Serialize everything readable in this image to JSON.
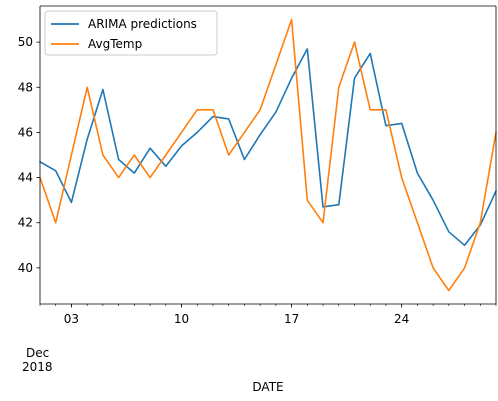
{
  "chart_data": {
    "type": "line",
    "xlabel": "DATE",
    "ylabel": "",
    "month_label": "Dec",
    "year_label": "2018",
    "x": [
      1,
      2,
      3,
      4,
      5,
      6,
      7,
      8,
      9,
      10,
      11,
      12,
      13,
      14,
      15,
      16,
      17,
      18,
      19,
      20,
      21,
      22,
      23,
      24,
      25,
      26,
      27,
      28,
      29,
      30
    ],
    "x_ticks": [
      {
        "value": 3,
        "label": "03"
      },
      {
        "value": 10,
        "label": "10"
      },
      {
        "value": 17,
        "label": "17"
      },
      {
        "value": 24,
        "label": "24"
      }
    ],
    "xlim": [
      1,
      30
    ],
    "ylim": [
      38.4,
      51.6
    ],
    "y_ticks": [
      40,
      42,
      44,
      46,
      48,
      50
    ],
    "legend_position": "upper-left",
    "series": [
      {
        "name": "ARIMA predictions",
        "color": "#1f77b4",
        "values": [
          44.7,
          44.3,
          42.9,
          45.7,
          47.9,
          44.8,
          44.2,
          45.3,
          44.5,
          45.4,
          46.0,
          46.7,
          46.6,
          44.8,
          45.9,
          46.9,
          48.4,
          49.7,
          42.7,
          42.8,
          48.4,
          49.5,
          46.3,
          46.4,
          44.2,
          43.0,
          41.6,
          41.0,
          41.9,
          43.4
        ]
      },
      {
        "name": "AvgTemp",
        "color": "#ff7f0e",
        "values": [
          44.0,
          42.0,
          45.0,
          48.0,
          45.0,
          44.0,
          45.0,
          44.0,
          45.0,
          46.0,
          47.0,
          47.0,
          45.0,
          46.0,
          47.0,
          49.0,
          51.0,
          43.0,
          42.0,
          48.0,
          50.0,
          47.0,
          47.0,
          44.0,
          42.0,
          40.0,
          39.0,
          40.0,
          42.0,
          46.0
        ]
      }
    ]
  }
}
